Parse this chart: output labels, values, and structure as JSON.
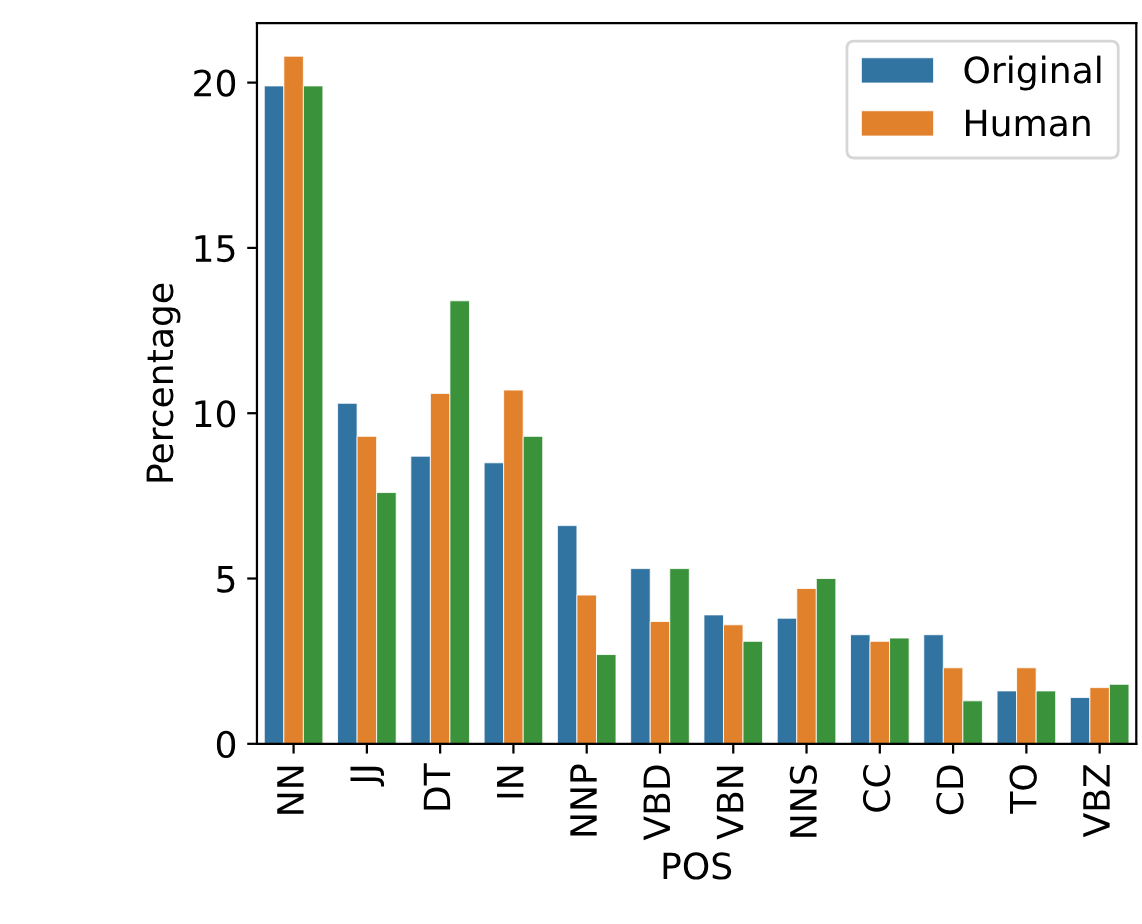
{
  "chart_data": {
    "type": "bar",
    "xlabel": "POS",
    "ylabel": "Percentage",
    "categories": [
      "NN",
      "JJ",
      "DT",
      "IN",
      "NNP",
      "VBD",
      "VBN",
      "NNS",
      "CC",
      "CD",
      "TO",
      "VBZ"
    ],
    "series": [
      {
        "name": "Original",
        "color": "#3274a1",
        "values": [
          19.9,
          10.3,
          8.7,
          8.5,
          6.6,
          5.3,
          3.9,
          3.8,
          3.3,
          3.3,
          1.6,
          1.4
        ]
      },
      {
        "name": "Human",
        "color": "#e1812c",
        "values": [
          20.8,
          9.3,
          10.6,
          10.7,
          4.5,
          3.7,
          3.6,
          4.7,
          3.1,
          2.3,
          2.3,
          1.7
        ]
      },
      {
        "color": "#3a923a",
        "values": [
          19.9,
          7.6,
          13.4,
          9.3,
          2.7,
          5.3,
          3.1,
          5.0,
          3.2,
          1.3,
          1.6,
          1.8
        ]
      }
    ],
    "ylim": [
      0,
      21.8
    ],
    "yticks": [
      0,
      5,
      10,
      15,
      20
    ],
    "grid": false,
    "legend": "top right"
  }
}
